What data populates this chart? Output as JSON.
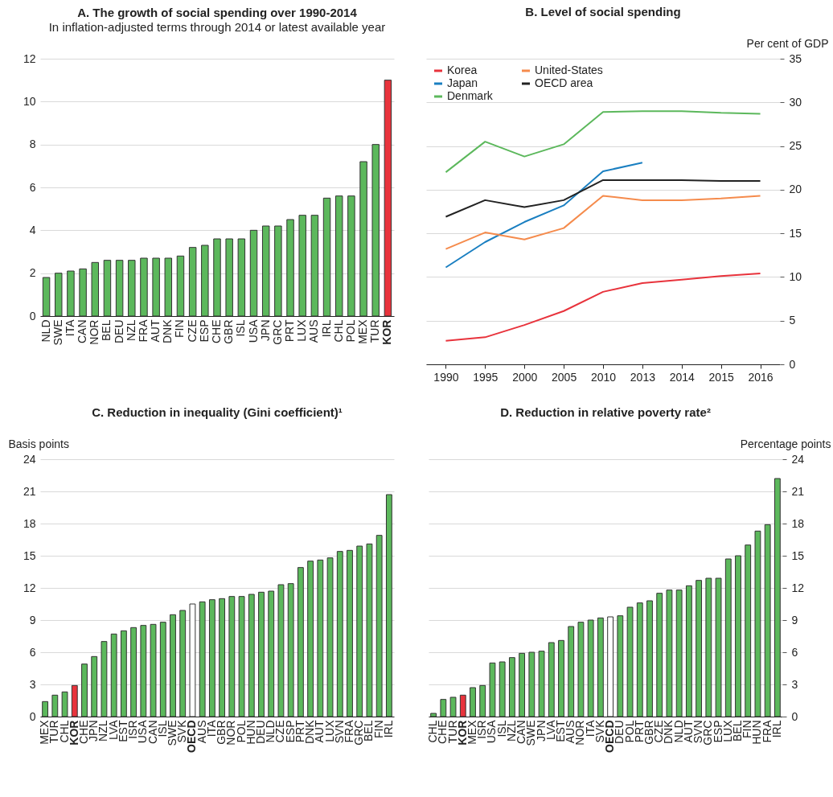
{
  "chart_data": [
    {
      "type": "bar",
      "title": "A. The growth of social spending over 1990-2014",
      "subtitle": "In inflation-adjusted terms through 2014 or latest available year",
      "categories": [
        "NLD",
        "SWE",
        "ITA",
        "CAN",
        "NOR",
        "BEL",
        "DEU",
        "NZL",
        "FRA",
        "AUT",
        "DNK",
        "FIN",
        "CZE",
        "ESP",
        "CHE",
        "GBR",
        "ISL",
        "USA",
        "JPN",
        "GRC",
        "PRT",
        "LUX",
        "AUS",
        "IRL",
        "CHL",
        "POL",
        "MEX",
        "TUR",
        "KOR"
      ],
      "values": [
        1.8,
        2.0,
        2.1,
        2.2,
        2.5,
        2.6,
        2.6,
        2.6,
        2.7,
        2.7,
        2.7,
        2.8,
        3.2,
        3.3,
        3.6,
        3.6,
        3.6,
        4.0,
        4.2,
        4.2,
        4.5,
        4.7,
        4.7,
        5.5,
        5.6,
        5.6,
        7.2,
        8.0,
        11.0
      ],
      "colors": [
        "#5cb85c",
        "#5cb85c",
        "#5cb85c",
        "#5cb85c",
        "#5cb85c",
        "#5cb85c",
        "#5cb85c",
        "#5cb85c",
        "#5cb85c",
        "#5cb85c",
        "#5cb85c",
        "#5cb85c",
        "#5cb85c",
        "#5cb85c",
        "#5cb85c",
        "#5cb85c",
        "#5cb85c",
        "#5cb85c",
        "#5cb85c",
        "#5cb85c",
        "#5cb85c",
        "#5cb85c",
        "#5cb85c",
        "#5cb85c",
        "#5cb85c",
        "#5cb85c",
        "#5cb85c",
        "#5cb85c",
        "#e8333c"
      ],
      "ylim": [
        0,
        12
      ],
      "yticks": [
        0,
        2,
        4,
        6,
        8,
        10,
        12
      ],
      "grid": "y"
    },
    {
      "type": "line",
      "title": "B. Level of social spending",
      "ylabel": "Per cent of GDP",
      "categories": [
        "1990",
        "1995",
        "2000",
        "2005",
        "2010",
        "2013",
        "2014",
        "2015",
        "2016"
      ],
      "series": [
        {
          "name": "Korea",
          "color": "#e8333c",
          "values": [
            2.7,
            3.1,
            4.5,
            6.1,
            8.3,
            9.3,
            9.7,
            10.1,
            10.4
          ]
        },
        {
          "name": "Japan",
          "color": "#1a7fc1",
          "values": [
            11.1,
            14.0,
            16.3,
            18.2,
            22.1,
            23.1,
            null,
            null,
            null
          ]
        },
        {
          "name": "Denmark",
          "color": "#5cb85c",
          "values": [
            22.0,
            25.5,
            23.8,
            25.2,
            28.9,
            29.0,
            29.0,
            28.8,
            28.7
          ]
        },
        {
          "name": "United-States",
          "color": "#f58b4c",
          "values": [
            13.2,
            15.1,
            14.3,
            15.6,
            19.3,
            18.8,
            18.8,
            19.0,
            19.3
          ]
        },
        {
          "name": "OECD area",
          "color": "#222222",
          "values": [
            16.9,
            18.8,
            18.0,
            18.8,
            21.1,
            21.1,
            21.1,
            21.0,
            21.0
          ]
        }
      ],
      "ylim": [
        0,
        35
      ],
      "yticks": [
        0,
        5,
        10,
        15,
        20,
        25,
        30,
        35
      ],
      "grid": "y",
      "legend": "top left"
    },
    {
      "type": "bar",
      "title": "C. Reduction in inequality (Gini coefficient)¹",
      "ylabel": "Basis points",
      "categories": [
        "MEX",
        "TUR",
        "CHL",
        "KOR",
        "CHE",
        "JPN",
        "NZL",
        "LVA",
        "EST",
        "ISR",
        "USA",
        "CAN",
        "ISL",
        "SWE",
        "SVK",
        "OECD",
        "AUS",
        "ITA",
        "GBR",
        "NOR",
        "POL",
        "HUN",
        "DEU",
        "NLD",
        "CZE",
        "ESP",
        "PRT",
        "DNK",
        "AUT",
        "LUX",
        "SVN",
        "FRA",
        "GRC",
        "BEL",
        "FIN",
        "IRL"
      ],
      "values": [
        1.4,
        2.0,
        2.3,
        2.9,
        4.9,
        5.6,
        7.0,
        7.7,
        8.0,
        8.3,
        8.5,
        8.6,
        8.8,
        9.5,
        9.9,
        10.5,
        10.7,
        10.9,
        11.0,
        11.2,
        11.2,
        11.4,
        11.6,
        11.7,
        12.3,
        12.4,
        13.9,
        14.5,
        14.6,
        14.8,
        15.4,
        15.5,
        15.9,
        16.1,
        16.9,
        20.7
      ],
      "colors": [
        "#5cb85c",
        "#5cb85c",
        "#5cb85c",
        "#e8333c",
        "#5cb85c",
        "#5cb85c",
        "#5cb85c",
        "#5cb85c",
        "#5cb85c",
        "#5cb85c",
        "#5cb85c",
        "#5cb85c",
        "#5cb85c",
        "#5cb85c",
        "#5cb85c",
        "#ffffff",
        "#5cb85c",
        "#5cb85c",
        "#5cb85c",
        "#5cb85c",
        "#5cb85c",
        "#5cb85c",
        "#5cb85c",
        "#5cb85c",
        "#5cb85c",
        "#5cb85c",
        "#5cb85c",
        "#5cb85c",
        "#5cb85c",
        "#5cb85c",
        "#5cb85c",
        "#5cb85c",
        "#5cb85c",
        "#5cb85c",
        "#5cb85c",
        "#5cb85c"
      ],
      "ylim": [
        0,
        24
      ],
      "yticks": [
        0,
        3,
        6,
        9,
        12,
        15,
        18,
        21,
        24
      ],
      "grid": "y"
    },
    {
      "type": "bar",
      "title": "D. Reduction in relative poverty rate²",
      "ylabel": "Percentage points",
      "categories": [
        "CHL",
        "CHE",
        "TUR",
        "KOR",
        "MEX",
        "ISR",
        "USA",
        "ISL",
        "NZL",
        "CAN",
        "SWE",
        "JPN",
        "LVA",
        "EST",
        "AUS",
        "NOR",
        "ITA",
        "SVK",
        "OECD",
        "DEU",
        "POL",
        "PRT",
        "GBR",
        "CZE",
        "DNK",
        "NLD",
        "AUT",
        "SVN",
        "GRC",
        "ESP",
        "LUX",
        "BEL",
        "FIN",
        "HUN",
        "FRA",
        "IRL"
      ],
      "values": [
        0.3,
        1.6,
        1.8,
        2.0,
        2.7,
        2.9,
        5.0,
        5.1,
        5.5,
        5.9,
        6.0,
        6.1,
        6.9,
        7.1,
        8.4,
        8.8,
        9.0,
        9.2,
        9.3,
        9.4,
        10.2,
        10.6,
        10.8,
        11.5,
        11.8,
        11.8,
        12.2,
        12.7,
        12.9,
        12.9,
        14.7,
        15.0,
        16.0,
        17.3,
        17.9,
        22.2
      ],
      "colors": [
        "#5cb85c",
        "#5cb85c",
        "#5cb85c",
        "#e8333c",
        "#5cb85c",
        "#5cb85c",
        "#5cb85c",
        "#5cb85c",
        "#5cb85c",
        "#5cb85c",
        "#5cb85c",
        "#5cb85c",
        "#5cb85c",
        "#5cb85c",
        "#5cb85c",
        "#5cb85c",
        "#5cb85c",
        "#5cb85c",
        "#ffffff",
        "#5cb85c",
        "#5cb85c",
        "#5cb85c",
        "#5cb85c",
        "#5cb85c",
        "#5cb85c",
        "#5cb85c",
        "#5cb85c",
        "#5cb85c",
        "#5cb85c",
        "#5cb85c",
        "#5cb85c",
        "#5cb85c",
        "#5cb85c",
        "#5cb85c",
        "#5cb85c",
        "#5cb85c"
      ],
      "ylim": [
        0,
        24
      ],
      "yticks": [
        0,
        3,
        6,
        9,
        12,
        15,
        18,
        21,
        24
      ],
      "grid": "y"
    }
  ]
}
